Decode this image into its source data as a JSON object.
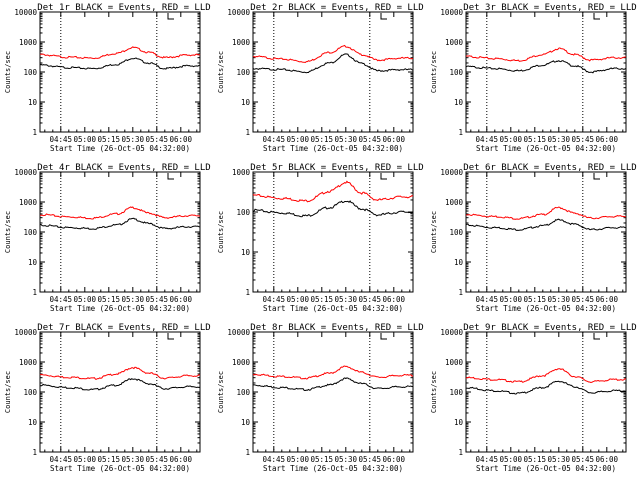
{
  "chart_data": [
    {
      "type": "line",
      "title": "Det 1r BLACK = Events, RED = LLD",
      "xlabel": "Start Time (26-Oct-05 04:32:00)",
      "ylabel": "Counts/sec",
      "ylim": [
        1,
        10000
      ],
      "yscale": "log",
      "x_ticks": [
        "04:45",
        "05:00",
        "05:15",
        "05:30",
        "05:45",
        "06:00"
      ],
      "y_ticks": [
        "1",
        "10",
        "100",
        "1000",
        "10000"
      ],
      "dotted_vertical_lines": [
        "04:45",
        "05:45"
      ],
      "series": [
        {
          "name": "Events",
          "color": "#000000",
          "x": [
            "04:32",
            "04:50",
            "05:05",
            "05:20",
            "05:30",
            "05:40",
            "05:50",
            "06:05"
          ],
          "values": [
            170,
            140,
            130,
            180,
            290,
            200,
            130,
            160
          ]
        },
        {
          "name": "LLD",
          "color": "#ff0000",
          "x": [
            "04:32",
            "04:50",
            "05:05",
            "05:20",
            "05:30",
            "05:40",
            "05:50",
            "06:05"
          ],
          "values": [
            380,
            310,
            290,
            420,
            650,
            450,
            300,
            370
          ]
        }
      ]
    },
    {
      "type": "line",
      "title": "Det 2r BLACK = Events, RED = LLD",
      "xlabel": "Start Time (26-Oct-05 04:32:00)",
      "ylabel": "Counts/sec",
      "ylim": [
        1,
        10000
      ],
      "yscale": "log",
      "x_ticks": [
        "04:45",
        "05:00",
        "05:15",
        "05:30",
        "05:45",
        "06:00"
      ],
      "y_ticks": [
        "1",
        "10",
        "100",
        "1000",
        "10000"
      ],
      "dotted_vertical_lines": [
        "04:45",
        "05:45"
      ],
      "series": [
        {
          "name": "Events",
          "color": "#000000",
          "x": [
            "04:32",
            "04:50",
            "05:05",
            "05:20",
            "05:30",
            "05:40",
            "05:50",
            "06:05"
          ],
          "values": [
            130,
            120,
            100,
            200,
            380,
            190,
            110,
            120
          ]
        },
        {
          "name": "LLD",
          "color": "#ff0000",
          "x": [
            "04:32",
            "04:50",
            "05:05",
            "05:20",
            "05:30",
            "05:40",
            "05:50",
            "06:05"
          ],
          "values": [
            330,
            270,
            220,
            450,
            720,
            380,
            250,
            290
          ]
        }
      ]
    },
    {
      "type": "line",
      "title": "Det 3r BLACK = Events, RED = LLD",
      "xlabel": "Start Time (26-Oct-05 04:32:00)",
      "ylabel": "Counts/sec",
      "ylim": [
        1,
        10000
      ],
      "yscale": "log",
      "x_ticks": [
        "04:45",
        "05:00",
        "05:15",
        "05:30",
        "05:45",
        "06:00"
      ],
      "y_ticks": [
        "1",
        "10",
        "100",
        "1000",
        "10000"
      ],
      "dotted_vertical_lines": [
        "04:45",
        "05:45"
      ],
      "series": [
        {
          "name": "Events",
          "color": "#000000",
          "x": [
            "04:32",
            "04:50",
            "05:05",
            "05:20",
            "05:30",
            "05:40",
            "05:50",
            "06:05"
          ],
          "values": [
            150,
            130,
            110,
            170,
            240,
            160,
            100,
            130
          ]
        },
        {
          "name": "LLD",
          "color": "#ff0000",
          "x": [
            "04:32",
            "04:50",
            "05:05",
            "05:20",
            "05:30",
            "05:40",
            "05:50",
            "06:05"
          ],
          "values": [
            330,
            280,
            240,
            380,
            600,
            380,
            250,
            300
          ]
        }
      ]
    },
    {
      "type": "line",
      "title": "Det 4r BLACK = Events, RED = LLD",
      "xlabel": "Start Time (26-Oct-05 04:32:00)",
      "ylabel": "Counts/sec",
      "ylim": [
        1,
        10000
      ],
      "yscale": "log",
      "x_ticks": [
        "04:45",
        "05:00",
        "05:15",
        "05:30",
        "05:45",
        "06:00"
      ],
      "y_ticks": [
        "1",
        "10",
        "100",
        "1000",
        "10000"
      ],
      "dotted_vertical_lines": [
        "04:45",
        "05:45"
      ],
      "series": [
        {
          "name": "Events",
          "color": "#000000",
          "x": [
            "04:32",
            "04:50",
            "05:05",
            "05:20",
            "05:30",
            "05:40",
            "05:50",
            "06:05"
          ],
          "values": [
            170,
            140,
            130,
            170,
            270,
            190,
            130,
            150
          ]
        },
        {
          "name": "LLD",
          "color": "#ff0000",
          "x": [
            "04:32",
            "04:50",
            "05:05",
            "05:20",
            "05:30",
            "05:40",
            "05:50",
            "06:05"
          ],
          "values": [
            380,
            320,
            290,
            400,
            650,
            430,
            300,
            350
          ]
        }
      ]
    },
    {
      "type": "line",
      "title": "Det 5r BLACK = Events, RED = LLD",
      "xlabel": "Start Time (26-Oct-05 04:32:00)",
      "ylabel": "Counts/sec",
      "ylim": [
        1,
        1000
      ],
      "yscale": "log",
      "x_ticks": [
        "04:45",
        "05:00",
        "05:15",
        "05:30",
        "05:45",
        "06:00"
      ],
      "y_ticks": [
        "1",
        "10",
        "100",
        "1000"
      ],
      "dotted_vertical_lines": [
        "04:45",
        "05:45"
      ],
      "series": [
        {
          "name": "Events",
          "color": "#000000",
          "x": [
            "04:32",
            "04:50",
            "05:05",
            "05:20",
            "05:30",
            "05:40",
            "05:50",
            "06:05"
          ],
          "values": [
            110,
            95,
            80,
            130,
            190,
            120,
            85,
            100
          ]
        },
        {
          "name": "LLD",
          "color": "#ff0000",
          "x": [
            "04:32",
            "04:50",
            "05:05",
            "05:20",
            "05:30",
            "05:40",
            "05:50",
            "06:05"
          ],
          "values": [
            260,
            220,
            190,
            330,
            550,
            300,
            200,
            240
          ]
        }
      ]
    },
    {
      "type": "line",
      "title": "Det 6r BLACK = Events, RED = LLD",
      "xlabel": "Start Time (26-Oct-05 04:32:00)",
      "ylabel": "Counts/sec",
      "ylim": [
        1,
        10000
      ],
      "yscale": "log",
      "x_ticks": [
        "04:45",
        "05:00",
        "05:15",
        "05:30",
        "05:45",
        "06:00"
      ],
      "y_ticks": [
        "1",
        "10",
        "100",
        "1000",
        "10000"
      ],
      "dotted_vertical_lines": [
        "04:45",
        "05:45"
      ],
      "series": [
        {
          "name": "Events",
          "color": "#000000",
          "x": [
            "04:32",
            "04:50",
            "05:05",
            "05:20",
            "05:30",
            "05:40",
            "05:50",
            "06:05"
          ],
          "values": [
            170,
            140,
            120,
            160,
            250,
            180,
            120,
            140
          ]
        },
        {
          "name": "LLD",
          "color": "#ff0000",
          "x": [
            "04:32",
            "04:50",
            "05:05",
            "05:20",
            "05:30",
            "05:40",
            "05:50",
            "06:05"
          ],
          "values": [
            380,
            330,
            280,
            380,
            650,
            420,
            290,
            330
          ]
        }
      ]
    },
    {
      "type": "line",
      "title": "Det 7r BLACK = Events, RED = LLD",
      "xlabel": "Start Time (26-Oct-05 04:32:00)",
      "ylabel": "Counts/sec",
      "ylim": [
        1,
        10000
      ],
      "yscale": "log",
      "x_ticks": [
        "04:45",
        "05:00",
        "05:15",
        "05:30",
        "05:45",
        "06:00"
      ],
      "y_ticks": [
        "1",
        "10",
        "100",
        "1000",
        "10000"
      ],
      "dotted_vertical_lines": [
        "04:45",
        "05:45"
      ],
      "series": [
        {
          "name": "Events",
          "color": "#000000",
          "x": [
            "04:32",
            "04:50",
            "05:05",
            "05:20",
            "05:30",
            "05:40",
            "05:50",
            "06:05"
          ],
          "values": [
            170,
            140,
            120,
            170,
            280,
            190,
            130,
            150
          ]
        },
        {
          "name": "LLD",
          "color": "#ff0000",
          "x": [
            "04:32",
            "04:50",
            "05:05",
            "05:20",
            "05:30",
            "05:40",
            "05:50",
            "06:05"
          ],
          "values": [
            370,
            310,
            280,
            400,
            650,
            430,
            290,
            350
          ]
        }
      ]
    },
    {
      "type": "line",
      "title": "Det 8r BLACK = Events, RED = LLD",
      "xlabel": "Start Time (26-Oct-05 04:32:00)",
      "ylabel": "Counts/sec",
      "ylim": [
        1,
        10000
      ],
      "yscale": "log",
      "x_ticks": [
        "04:45",
        "05:00",
        "05:15",
        "05:30",
        "05:45",
        "06:00"
      ],
      "y_ticks": [
        "1",
        "10",
        "100",
        "1000",
        "10000"
      ],
      "dotted_vertical_lines": [
        "04:45",
        "05:45"
      ],
      "series": [
        {
          "name": "Events",
          "color": "#000000",
          "x": [
            "04:32",
            "04:50",
            "05:05",
            "05:20",
            "05:30",
            "05:40",
            "05:50",
            "06:05"
          ],
          "values": [
            170,
            140,
            120,
            170,
            280,
            190,
            130,
            150
          ]
        },
        {
          "name": "LLD",
          "color": "#ff0000",
          "x": [
            "04:32",
            "04:50",
            "05:05",
            "05:20",
            "05:30",
            "05:40",
            "05:50",
            "06:05"
          ],
          "values": [
            390,
            330,
            290,
            420,
            700,
            450,
            310,
            360
          ]
        }
      ]
    },
    {
      "type": "line",
      "title": "Det 9r BLACK = Events, RED = LLD",
      "xlabel": "Start Time (26-Oct-05 04:32:00)",
      "ylabel": "Counts/sec",
      "ylim": [
        1,
        10000
      ],
      "yscale": "log",
      "x_ticks": [
        "04:45",
        "05:00",
        "05:15",
        "05:30",
        "05:45",
        "06:00"
      ],
      "y_ticks": [
        "1",
        "10",
        "100",
        "1000",
        "10000"
      ],
      "dotted_vertical_lines": [
        "04:45",
        "05:45"
      ],
      "series": [
        {
          "name": "Events",
          "color": "#000000",
          "x": [
            "04:32",
            "04:50",
            "05:05",
            "05:20",
            "05:30",
            "05:40",
            "05:50",
            "06:05"
          ],
          "values": [
            140,
            110,
            90,
            140,
            230,
            150,
            95,
            110
          ]
        },
        {
          "name": "LLD",
          "color": "#ff0000",
          "x": [
            "04:32",
            "04:50",
            "05:05",
            "05:20",
            "05:30",
            "05:40",
            "05:50",
            "06:05"
          ],
          "values": [
            300,
            260,
            220,
            350,
            600,
            330,
            220,
            260
          ]
        }
      ]
    }
  ]
}
